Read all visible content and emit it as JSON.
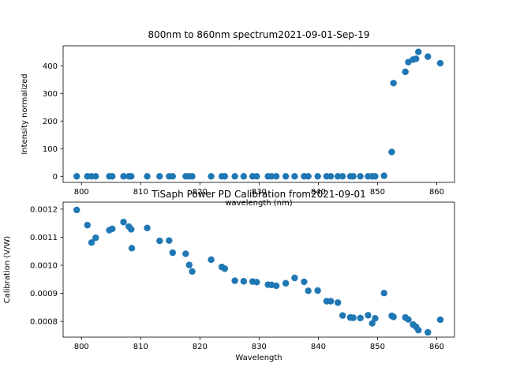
{
  "figure": {
    "background": "#ffffff",
    "marker_color": "#1f77b4"
  },
  "chart_data": [
    {
      "type": "scatter",
      "title": "800nm to 860nm spectrum2021-09-01-Sep-19",
      "xlabel": "wavelength (nm)",
      "ylabel": "Intensity normalized",
      "xlim": [
        796.9,
        863.0
      ],
      "ylim": [
        -22,
        472
      ],
      "xticks": [
        800,
        810,
        820,
        830,
        840,
        850,
        860
      ],
      "yticks": [
        0,
        100,
        200,
        300,
        400
      ],
      "x": [
        799.2,
        801.0,
        801.7,
        802.4,
        804.7,
        805.2,
        807.1,
        808.0,
        808.4,
        811.1,
        813.2,
        814.8,
        815.4,
        817.6,
        818.2,
        818.7,
        821.9,
        823.7,
        824.2,
        825.9,
        827.4,
        828.9,
        829.6,
        831.5,
        832.1,
        832.9,
        834.5,
        836.0,
        837.6,
        838.3,
        839.9,
        841.4,
        842.1,
        843.3,
        844.1,
        845.4,
        845.9,
        847.1,
        848.4,
        849.1,
        849.6,
        851.1,
        852.4,
        852.7,
        854.7,
        855.2,
        856.0,
        856.5,
        856.9,
        858.5,
        860.6
      ],
      "y": [
        0,
        0,
        0,
        0,
        0,
        0,
        0,
        0,
        0,
        0,
        0,
        0,
        0,
        0,
        0,
        0,
        0,
        0,
        0,
        0,
        0,
        0,
        0,
        0,
        0,
        0,
        0,
        0,
        0,
        0,
        0,
        0,
        0,
        0,
        0,
        0,
        0,
        0,
        0,
        0,
        0,
        2,
        88,
        337,
        378,
        413,
        422,
        425,
        450,
        433,
        409
      ]
    },
    {
      "type": "scatter",
      "title": "TiSaph Power PD Calibration from2021-09-01",
      "xlabel": "Wavelength",
      "ylabel": "Calibration (V/W)",
      "xlim": [
        796.9,
        863.0
      ],
      "ylim": [
        0.000744,
        0.001225
      ],
      "xticks": [
        800,
        810,
        820,
        830,
        840,
        850,
        860
      ],
      "yticks": [
        0.0008,
        0.0009,
        0.001,
        0.0011,
        0.0012
      ],
      "ytick_labels": [
        "0.0008",
        "0.0009",
        "0.0010",
        "0.0011",
        "0.0012"
      ],
      "x": [
        799.2,
        801.0,
        801.7,
        802.4,
        804.7,
        805.2,
        807.1,
        808.0,
        808.4,
        808.5,
        811.1,
        813.2,
        814.8,
        815.4,
        817.6,
        818.2,
        818.7,
        821.9,
        823.7,
        824.2,
        825.9,
        827.4,
        828.9,
        829.6,
        831.5,
        832.1,
        832.9,
        834.5,
        836.0,
        837.6,
        838.3,
        839.9,
        841.4,
        842.1,
        843.3,
        844.1,
        845.4,
        845.9,
        847.1,
        848.4,
        849.1,
        849.6,
        851.1,
        852.4,
        852.7,
        854.7,
        855.2,
        856.0,
        856.5,
        856.9,
        858.5,
        860.6
      ],
      "y": [
        0.001197,
        0.001143,
        0.001081,
        0.001098,
        0.001125,
        0.00113,
        0.001154,
        0.001138,
        0.001128,
        0.001061,
        0.001133,
        0.001087,
        0.001088,
        0.001045,
        0.001041,
        0.001001,
        0.000978,
        0.00102,
        0.000994,
        0.000988,
        0.000945,
        0.000943,
        0.000942,
        0.00094,
        0.000931,
        0.00093,
        0.000927,
        0.000936,
        0.000955,
        0.000941,
        0.000909,
        0.00091,
        0.000872,
        0.000872,
        0.000867,
        0.000821,
        0.000814,
        0.000813,
        0.000812,
        0.000822,
        0.000793,
        0.000811,
        0.000901,
        0.00082,
        0.000816,
        0.000814,
        0.000807,
        0.000789,
        0.000781,
        0.000769,
        0.000761,
        0.000806
      ]
    }
  ]
}
